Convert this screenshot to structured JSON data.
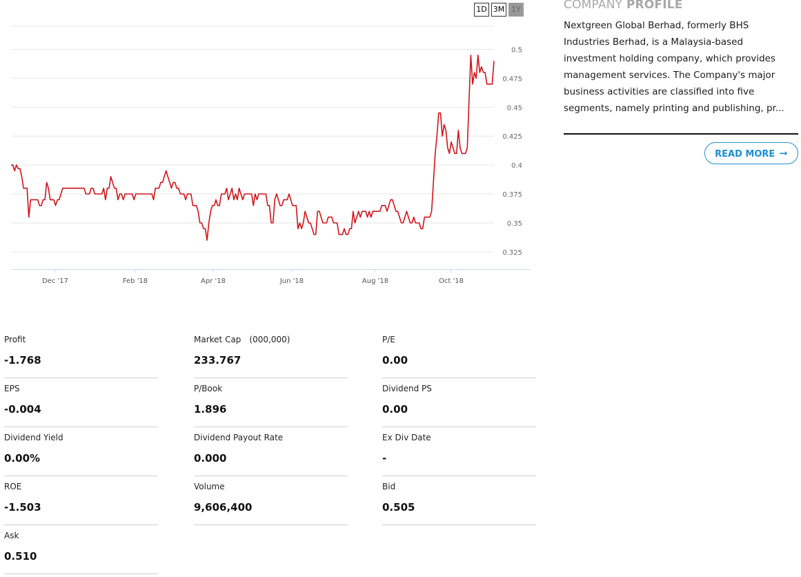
{
  "range_buttons": [
    {
      "label": "1D",
      "active": false
    },
    {
      "label": "3M",
      "active": false
    },
    {
      "label": "1Y",
      "active": true
    }
  ],
  "chart_data": {
    "type": "line",
    "title": "",
    "xlabel": "",
    "ylabel": "",
    "x_tick_labels": [
      "Dec '17",
      "Feb '18",
      "Apr '18",
      "Jun '18",
      "Aug '18",
      "Oct '18"
    ],
    "y_tick_labels": [
      "0.325",
      "0.35",
      "0.375",
      "0.4",
      "0.425",
      "0.45",
      "0.475",
      "0.5"
    ],
    "ylim": [
      0.31,
      0.52
    ],
    "line_color": "#d0131a",
    "grid": true,
    "series": [
      {
        "values": [
          0.4,
          0.4,
          0.395,
          0.4,
          0.397,
          0.397,
          0.39,
          0.38,
          0.38,
          0.38,
          0.355,
          0.37,
          0.37,
          0.37,
          0.37,
          0.37,
          0.365,
          0.365,
          0.37,
          0.37,
          0.385,
          0.38,
          0.37,
          0.37,
          0.37,
          0.365,
          0.37,
          0.37,
          0.375,
          0.38,
          0.38,
          0.38,
          0.38,
          0.38,
          0.38,
          0.38,
          0.38,
          0.38,
          0.38,
          0.38,
          0.38,
          0.38,
          0.375,
          0.375,
          0.375,
          0.38,
          0.38,
          0.375,
          0.375,
          0.375,
          0.375,
          0.375,
          0.38,
          0.37,
          0.38,
          0.38,
          0.39,
          0.385,
          0.38,
          0.38,
          0.37,
          0.375,
          0.375,
          0.37,
          0.375,
          0.375,
          0.375,
          0.375,
          0.375,
          0.37,
          0.375,
          0.375,
          0.375,
          0.375,
          0.375,
          0.375,
          0.375,
          0.375,
          0.375,
          0.375,
          0.37,
          0.38,
          0.38,
          0.38,
          0.385,
          0.385,
          0.39,
          0.395,
          0.39,
          0.385,
          0.38,
          0.385,
          0.385,
          0.38,
          0.38,
          0.375,
          0.375,
          0.375,
          0.37,
          0.375,
          0.375,
          0.375,
          0.365,
          0.365,
          0.365,
          0.36,
          0.35,
          0.35,
          0.345,
          0.345,
          0.335,
          0.35,
          0.36,
          0.365,
          0.365,
          0.37,
          0.365,
          0.365,
          0.375,
          0.375,
          0.375,
          0.38,
          0.37,
          0.375,
          0.38,
          0.37,
          0.375,
          0.37,
          0.38,
          0.375,
          0.37,
          0.375,
          0.375,
          0.375,
          0.375,
          0.375,
          0.365,
          0.375,
          0.37,
          0.375,
          0.375,
          0.375,
          0.375,
          0.375,
          0.365,
          0.365,
          0.35,
          0.35,
          0.37,
          0.375,
          0.37,
          0.365,
          0.365,
          0.37,
          0.37,
          0.37,
          0.375,
          0.37,
          0.365,
          0.365,
          0.365,
          0.345,
          0.35,
          0.345,
          0.35,
          0.36,
          0.355,
          0.35,
          0.35,
          0.345,
          0.34,
          0.34,
          0.36,
          0.36,
          0.355,
          0.35,
          0.35,
          0.35,
          0.355,
          0.355,
          0.355,
          0.35,
          0.35,
          0.35,
          0.34,
          0.34,
          0.34,
          0.345,
          0.34,
          0.34,
          0.345,
          0.345,
          0.36,
          0.35,
          0.355,
          0.36,
          0.355,
          0.36,
          0.36,
          0.36,
          0.355,
          0.36,
          0.355,
          0.36,
          0.36,
          0.36,
          0.36,
          0.36,
          0.365,
          0.365,
          0.365,
          0.36,
          0.365,
          0.37,
          0.37,
          0.365,
          0.36,
          0.36,
          0.355,
          0.35,
          0.35,
          0.355,
          0.36,
          0.355,
          0.35,
          0.35,
          0.355,
          0.35,
          0.35,
          0.35,
          0.345,
          0.345,
          0.355,
          0.355,
          0.355,
          0.355,
          0.36,
          0.385,
          0.41,
          0.425,
          0.445,
          0.445,
          0.425,
          0.435,
          0.43,
          0.415,
          0.41,
          0.42,
          0.415,
          0.41,
          0.41,
          0.43,
          0.415,
          0.41,
          0.41,
          0.41,
          0.415,
          0.455,
          0.495,
          0.47,
          0.48,
          0.475,
          0.495,
          0.48,
          0.485,
          0.48,
          0.48,
          0.47,
          0.47,
          0.47,
          0.47,
          0.49
        ]
      }
    ]
  },
  "profile": {
    "title_light": "COMPANY",
    "title_bold": "PROFILE",
    "text": "Nextgreen Global Berhad, formerly BHS Industries Berhad, is a Malaysia-based investment holding company, which provides management services. The Company's major business activities are classified into five segments, namely printing and publishing, pr...",
    "read_more": "READ MORE"
  },
  "stats": [
    {
      "label": "Profit",
      "value": "-1.768"
    },
    {
      "label": "Market Cap",
      "unit": "(000,000)",
      "value": "233.767"
    },
    {
      "label": "P/E",
      "value": "0.00"
    },
    {
      "label": "EPS",
      "value": "-0.004"
    },
    {
      "label": "P/Book",
      "value": "1.896"
    },
    {
      "label": "Dividend PS",
      "value": "0.00"
    },
    {
      "label": "Dividend Yield",
      "value": "0.00%"
    },
    {
      "label": "Dividend Payout Rate",
      "value": "0.000"
    },
    {
      "label": "Ex Div Date",
      "value": "-"
    },
    {
      "label": "ROE",
      "value": "-1.503"
    },
    {
      "label": "Volume",
      "value": "9,606,400"
    },
    {
      "label": "Bid",
      "value": "0.505"
    },
    {
      "label": "Ask",
      "value": "0.510"
    }
  ]
}
